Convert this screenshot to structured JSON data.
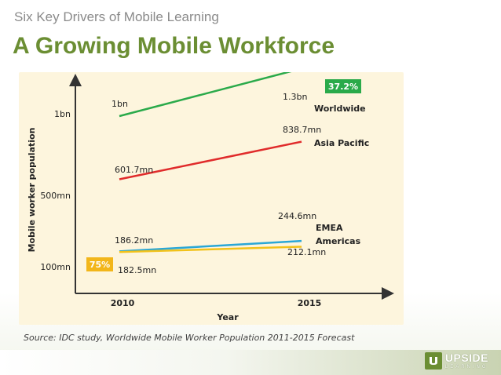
{
  "slide": {
    "kicker": "Six Key Drivers of Mobile Learning",
    "headline": "A Growing Mobile Workforce",
    "source": "Source: IDC study, Worldwide Mobile Worker Population 2011-2015 Forecast",
    "logo": {
      "word": "UPSIDE",
      "sub": "LEARNING",
      "color": "#6b8e33"
    }
  },
  "chart_data": {
    "type": "line",
    "xlabel": "Year",
    "ylabel": "Mobile worker population",
    "categories": [
      "2010",
      "2015"
    ],
    "y_ticks": [
      "100mn",
      "500mn",
      "1bn"
    ],
    "series": [
      {
        "name": "Worldwide",
        "values": [
          1000,
          1300
        ],
        "point_labels": [
          "1bn",
          "1.3bn"
        ],
        "color": "#2aaa4a"
      },
      {
        "name": "Asia Pacific",
        "values": [
          601.7,
          838.7
        ],
        "point_labels": [
          "601.7mn",
          "838.7mn"
        ],
        "color": "#e02b2b"
      },
      {
        "name": "EMEA",
        "values": [
          186.2,
          244.6
        ],
        "point_labels": [
          "186.2mn",
          "244.6mn"
        ],
        "color": "#2aa7d6"
      },
      {
        "name": "Americas",
        "values": [
          182.5,
          212.1
        ],
        "point_labels": [
          "182.5mn",
          "212.1mn"
        ],
        "color": "#f2c21a"
      }
    ],
    "badges": [
      {
        "text": "37.2%",
        "color": "#2aaa4a",
        "near": "Worldwide 2015"
      },
      {
        "text": "75%",
        "color": "#f2b61a",
        "near": "Americas 2010"
      }
    ],
    "grid": false,
    "legend": "labels at line ends"
  }
}
